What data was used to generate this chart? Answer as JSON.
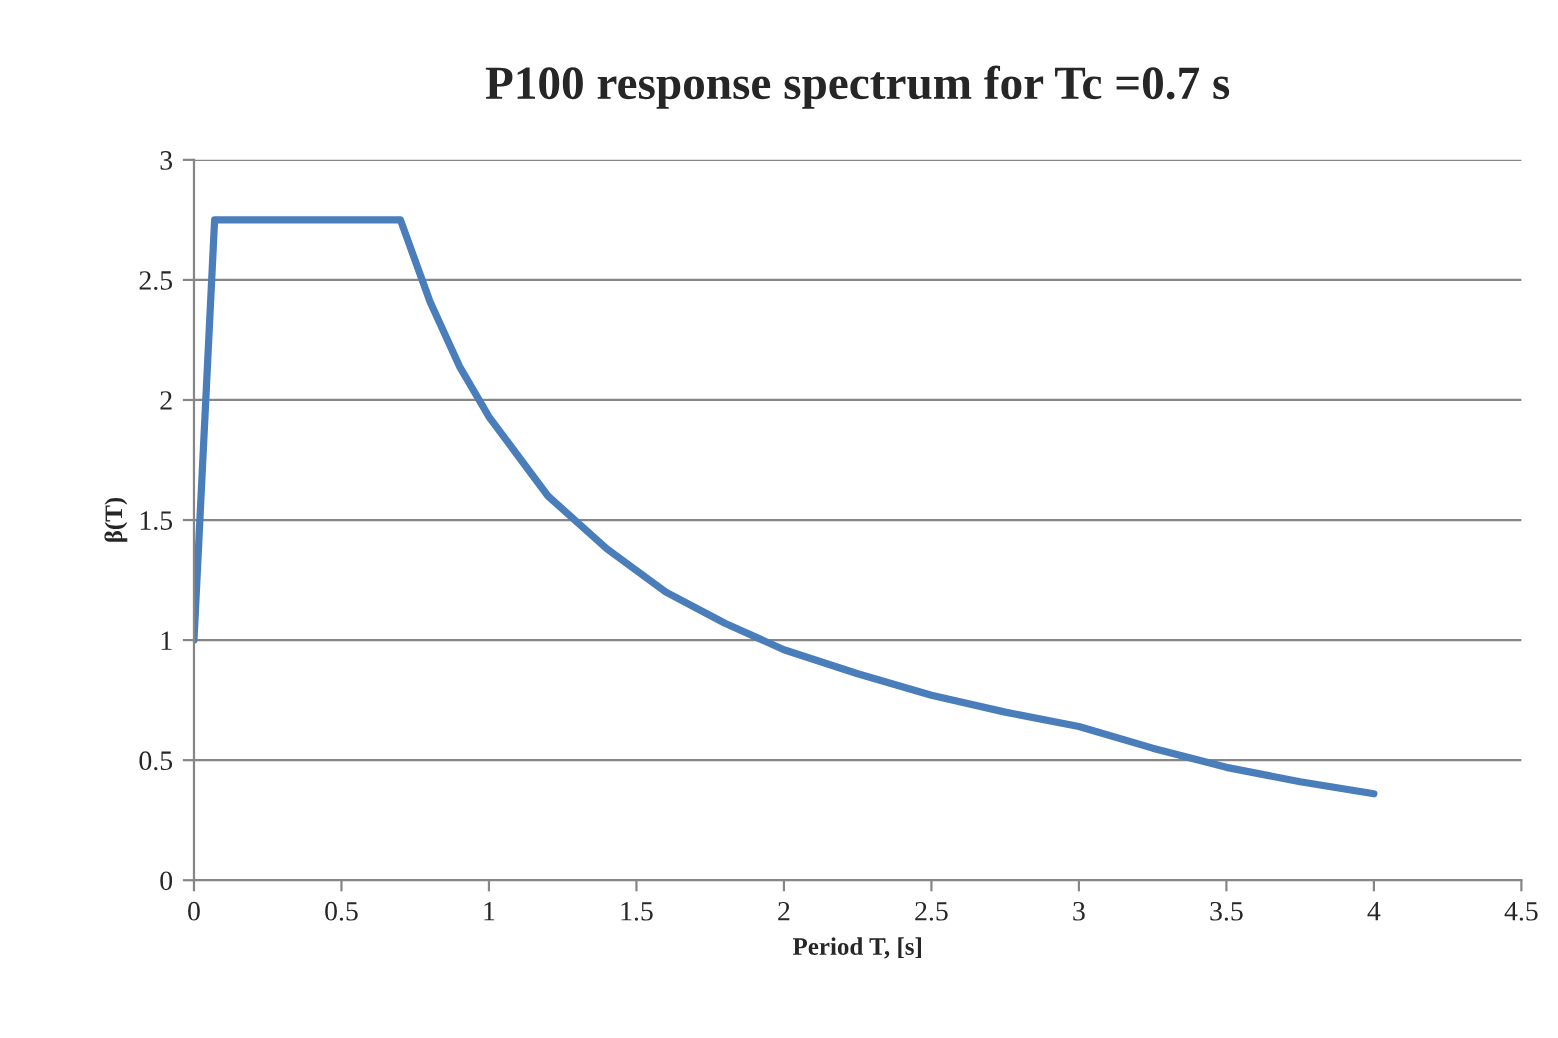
{
  "chart_data": {
    "type": "line",
    "title": "P100 response spectrum for Tc =0.7 s",
    "xlabel": "Period T, [s]",
    "ylabel": "β(T)",
    "x": [
      0,
      0.07,
      0.7,
      0.8,
      0.9,
      1,
      1.2,
      1.4,
      1.6,
      1.8,
      2,
      2.25,
      2.5,
      2.75,
      3,
      3.25,
      3.5,
      3.75,
      4
    ],
    "series": [
      {
        "color": "#4a7ebb",
        "values": [
          1,
          2.75,
          2.75,
          2.41,
          2.14,
          1.93,
          1.6,
          1.38,
          1.2,
          1.07,
          0.96,
          0.86,
          0.77,
          0.7,
          0.64,
          0.55,
          0.47,
          0.41,
          0.36
        ]
      }
    ],
    "xlim": [
      0,
      4.5
    ],
    "xticks": [
      0,
      0.5,
      1,
      1.5,
      2,
      2.5,
      3,
      3.5,
      4,
      4.5
    ],
    "ylim": [
      0,
      3
    ],
    "yticks": [
      0,
      0.5,
      1,
      1.5,
      2,
      2.5,
      3
    ],
    "grid": "y",
    "marker": "none",
    "line_style": "solid"
  }
}
